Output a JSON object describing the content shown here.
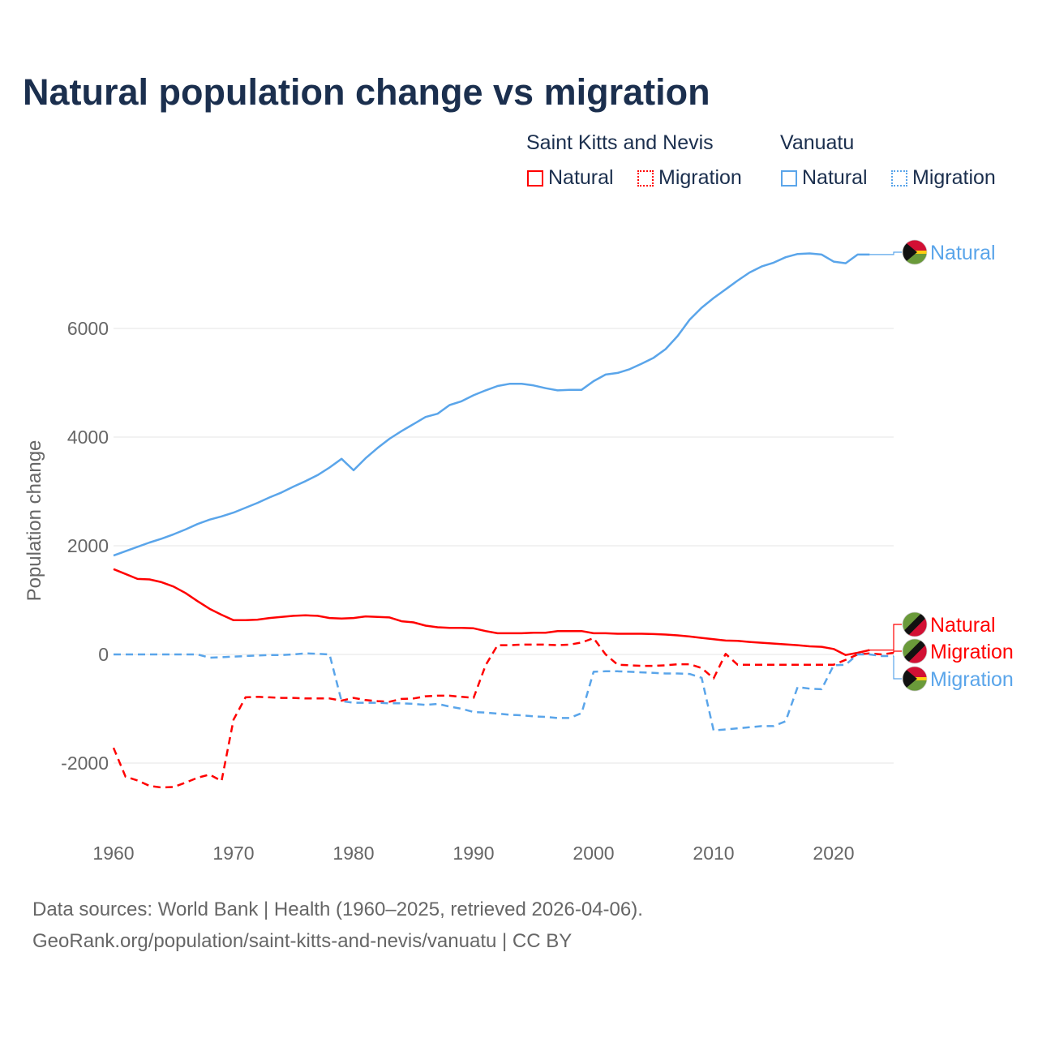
{
  "title": "Natural population change vs migration",
  "legend": {
    "groups": [
      {
        "name": "Saint Kitts and Nevis",
        "color": "#ff0000",
        "items": [
          "Natural",
          "Migration"
        ]
      },
      {
        "name": "Vanuatu",
        "color": "#5aa5ea",
        "items": [
          "Natural",
          "Migration"
        ]
      }
    ]
  },
  "footer": {
    "line1": "Data sources: World Bank | Health (1960–2025, retrieved 2026-04-06).",
    "line2": "GeoRank.org/population/saint-kitts-and-nevis/vanuatu | CC BY"
  },
  "chart_data": {
    "type": "line",
    "title": "Natural population change vs migration",
    "xlabel": "",
    "ylabel": "Population change",
    "xlim": [
      1960,
      2025
    ],
    "ylim": [
      -3000,
      7600
    ],
    "xticks": [
      1960,
      1970,
      1980,
      1990,
      2000,
      2010,
      2020
    ],
    "yticks": [
      -2000,
      0,
      2000,
      4000,
      6000
    ],
    "grid": true,
    "legend_position": "top-right",
    "series": [
      {
        "name": "Vanuatu Natural",
        "country": "Vanuatu",
        "kind": "Natural",
        "color": "#5aa5ea",
        "dash": false,
        "end_label": "Natural",
        "start": 1960,
        "values": [
          1820,
          1900,
          1980,
          2060,
          2130,
          2210,
          2300,
          2400,
          2480,
          2540,
          2610,
          2700,
          2790,
          2890,
          2980,
          3090,
          3190,
          3300,
          3440,
          3600,
          3390,
          3610,
          3800,
          3970,
          4110,
          4240,
          4370,
          4430,
          4590,
          4660,
          4770,
          4860,
          4940,
          4980,
          4980,
          4950,
          4900,
          4860,
          4870,
          4870,
          5030,
          5150,
          5180,
          5250,
          5350,
          5460,
          5620,
          5860,
          6160,
          6380,
          6560,
          6720,
          6880,
          7030,
          7140,
          7210,
          7310,
          7370,
          7380,
          7360,
          7230,
          7200,
          7360,
          7360
        ]
      },
      {
        "name": "Saint Kitts and Nevis Natural",
        "country": "Saint Kitts and Nevis",
        "kind": "Natural",
        "color": "#ff0000",
        "dash": false,
        "end_label": "Natural",
        "start": 1960,
        "values": [
          1570,
          1480,
          1390,
          1380,
          1330,
          1250,
          1130,
          980,
          840,
          730,
          630,
          630,
          640,
          670,
          690,
          710,
          720,
          710,
          670,
          660,
          670,
          700,
          690,
          680,
          610,
          590,
          530,
          500,
          490,
          490,
          480,
          430,
          390,
          390,
          390,
          400,
          400,
          430,
          430,
          430,
          390,
          390,
          380,
          380,
          380,
          375,
          365,
          350,
          330,
          305,
          280,
          255,
          250,
          230,
          215,
          200,
          185,
          170,
          150,
          140,
          100,
          -10,
          30,
          80
        ]
      },
      {
        "name": "Saint Kitts and Nevis Migration",
        "country": "Saint Kitts and Nevis",
        "kind": "Migration",
        "color": "#ff0000",
        "dash": true,
        "end_label": "Migration",
        "start": 1960,
        "values": [
          -1720,
          -2250,
          -2320,
          -2420,
          -2450,
          -2440,
          -2360,
          -2270,
          -2210,
          -2330,
          -1200,
          -790,
          -780,
          -790,
          -800,
          -800,
          -810,
          -810,
          -810,
          -850,
          -800,
          -840,
          -860,
          -870,
          -820,
          -810,
          -770,
          -760,
          -760,
          -780,
          -800,
          -200,
          170,
          170,
          180,
          180,
          180,
          170,
          180,
          220,
          300,
          0,
          -190,
          -200,
          -210,
          -210,
          -200,
          -180,
          -180,
          -250,
          -440,
          10,
          -190,
          -190,
          -190,
          -190,
          -190,
          -190,
          -190,
          -190,
          -190,
          -100,
          0,
          20,
          0,
          30
        ]
      },
      {
        "name": "Vanuatu Migration",
        "country": "Vanuatu",
        "kind": "Migration",
        "color": "#5aa5ea",
        "dash": true,
        "end_label": "Migration",
        "start": 1960,
        "values": [
          0,
          0,
          0,
          0,
          0,
          0,
          0,
          0,
          -60,
          -50,
          -40,
          -30,
          -20,
          -10,
          -10,
          0,
          20,
          10,
          0,
          -860,
          -890,
          -890,
          -890,
          -900,
          -900,
          -910,
          -930,
          -910,
          -960,
          -1000,
          -1060,
          -1070,
          -1090,
          -1110,
          -1120,
          -1140,
          -1150,
          -1170,
          -1170,
          -1080,
          -320,
          -310,
          -310,
          -320,
          -330,
          -340,
          -350,
          -350,
          -360,
          -430,
          -1400,
          -1380,
          -1360,
          -1340,
          -1320,
          -1320,
          -1230,
          -600,
          -630,
          -640,
          -200,
          -190,
          0,
          0,
          -30,
          -30
        ]
      }
    ]
  }
}
